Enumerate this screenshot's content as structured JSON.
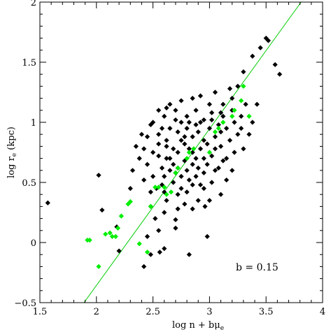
{
  "chart_data": {
    "type": "scatter",
    "xlabel": "log n + bμe",
    "xlabel_parts": {
      "main": "log n + bμ",
      "sub": "e"
    },
    "ylabel": "log re (kpc)",
    "ylabel_parts": {
      "pre": "log r",
      "sub": "e",
      "post": " (kpc)"
    },
    "xlim": [
      1.5,
      4
    ],
    "ylim": [
      -0.5,
      2
    ],
    "x_major_ticks": [
      1.5,
      2,
      2.5,
      3,
      3.5,
      4
    ],
    "x_tick_labels": [
      "1.5",
      "2",
      "2.5",
      "3",
      "3.5",
      "4"
    ],
    "y_major_ticks": [
      -0.5,
      0,
      0.5,
      1,
      1.5,
      2
    ],
    "y_tick_labels": [
      "−0.5",
      "0",
      "0.5",
      "1",
      "1.5",
      "2"
    ],
    "grid": false,
    "annotation": "b = 0.15",
    "fit_line": {
      "x": [
        1.89,
        3.81
      ],
      "y": [
        -0.5,
        2.0
      ],
      "color": "#00cc00"
    },
    "series": [
      {
        "color": "#000000",
        "marker": "diamond",
        "points": [
          [
            1.57,
            0.33
          ],
          [
            2.02,
            0.56
          ],
          [
            2.05,
            0.27
          ],
          [
            2.18,
            0.13
          ],
          [
            2.2,
            -0.07
          ],
          [
            2.42,
            -0.2
          ],
          [
            2.45,
            0.05
          ],
          [
            2.48,
            -0.1
          ],
          [
            2.56,
            -0.08
          ],
          [
            2.6,
            -0.05
          ],
          [
            2.82,
            -0.1
          ],
          [
            2.55,
            0.1
          ],
          [
            2.7,
            0.12
          ],
          [
            2.7,
            0.19
          ],
          [
            2.98,
            0.05
          ],
          [
            2.52,
            0.2
          ],
          [
            2.6,
            0.25
          ],
          [
            2.62,
            0.35
          ],
          [
            2.72,
            0.28
          ],
          [
            2.78,
            0.32
          ],
          [
            2.85,
            0.28
          ],
          [
            2.9,
            0.35
          ],
          [
            2.96,
            0.3
          ],
          [
            2.72,
            0.4
          ],
          [
            2.8,
            0.42
          ],
          [
            2.48,
            0.42
          ],
          [
            2.53,
            0.45
          ],
          [
            2.58,
            0.48
          ],
          [
            2.5,
            0.55
          ],
          [
            2.6,
            0.55
          ],
          [
            2.68,
            0.5
          ],
          [
            2.75,
            0.55
          ],
          [
            2.85,
            0.48
          ],
          [
            2.95,
            0.45
          ],
          [
            3.02,
            0.5
          ],
          [
            3.1,
            0.4
          ],
          [
            2.38,
            0.7
          ],
          [
            2.45,
            0.65
          ],
          [
            2.55,
            0.72
          ],
          [
            2.62,
            0.7
          ],
          [
            2.68,
            0.65
          ],
          [
            2.72,
            0.75
          ],
          [
            2.78,
            0.68
          ],
          [
            2.82,
            0.78
          ],
          [
            2.88,
            0.7
          ],
          [
            2.92,
            0.78
          ],
          [
            2.98,
            0.65
          ],
          [
            3.02,
            0.72
          ],
          [
            3.08,
            0.62
          ],
          [
            3.15,
            0.7
          ],
          [
            3.2,
            0.6
          ],
          [
            2.45,
            0.88
          ],
          [
            2.55,
            0.9
          ],
          [
            2.62,
            0.85
          ],
          [
            2.65,
            0.95
          ],
          [
            2.72,
            0.92
          ],
          [
            2.75,
            0.85
          ],
          [
            2.8,
            0.95
          ],
          [
            2.85,
            0.88
          ],
          [
            2.9,
            0.92
          ],
          [
            2.95,
            0.85
          ],
          [
            3.0,
            0.95
          ],
          [
            3.05,
            0.88
          ],
          [
            3.1,
            0.92
          ],
          [
            3.18,
            0.85
          ],
          [
            3.25,
            0.9
          ],
          [
            3.3,
            0.78
          ],
          [
            2.5,
            1.0
          ],
          [
            2.6,
            1.05
          ],
          [
            2.7,
            1.02
          ],
          [
            2.8,
            1.05
          ],
          [
            2.88,
            1.1
          ],
          [
            2.95,
            1.02
          ],
          [
            3.02,
            1.08
          ],
          [
            3.12,
            1.05
          ],
          [
            3.2,
            1.1
          ],
          [
            3.28,
            0.95
          ],
          [
            3.32,
            1.15
          ],
          [
            2.92,
            1.22
          ],
          [
            3.05,
            1.25
          ],
          [
            3.18,
            1.28
          ],
          [
            3.25,
            1.3
          ],
          [
            3.42,
            1.15
          ],
          [
            3.3,
            1.42
          ],
          [
            3.38,
            1.55
          ],
          [
            3.45,
            1.62
          ],
          [
            3.5,
            1.7
          ],
          [
            3.52,
            1.68
          ],
          [
            3.58,
            1.48
          ],
          [
            3.62,
            1.4
          ],
          [
            2.65,
            1.15
          ],
          [
            2.75,
            1.18
          ],
          [
            2.85,
            1.2
          ],
          [
            2.35,
            0.8
          ],
          [
            2.3,
            0.45
          ],
          [
            2.32,
            0.6
          ],
          [
            2.42,
            0.52
          ],
          [
            2.48,
            0.3
          ],
          [
            2.65,
            0.6
          ],
          [
            2.75,
            0.45
          ],
          [
            2.88,
            0.55
          ],
          [
            3.0,
            0.35
          ],
          [
            3.15,
            0.52
          ],
          [
            3.22,
            0.75
          ],
          [
            3.35,
            0.9
          ],
          [
            3.38,
            1.0
          ],
          [
            3.1,
            0.8
          ],
          [
            2.9,
            0.62
          ],
          [
            2.58,
            0.62
          ],
          [
            2.68,
            0.78
          ],
          [
            2.78,
            0.82
          ],
          [
            2.85,
            0.75
          ],
          [
            2.95,
            0.7
          ],
          [
            3.05,
            0.78
          ],
          [
            2.8,
            0.6
          ],
          [
            2.72,
            0.62
          ],
          [
            2.62,
            0.8
          ],
          [
            2.55,
            0.82
          ],
          [
            2.5,
            0.75
          ],
          [
            2.42,
            0.78
          ],
          [
            2.98,
            0.82
          ],
          [
            3.08,
            0.98
          ],
          [
            3.15,
            0.95
          ],
          [
            2.82,
            1.0
          ],
          [
            2.7,
            1.1
          ],
          [
            2.58,
            0.95
          ],
          [
            2.92,
            1.0
          ],
          [
            3.02,
            1.02
          ],
          [
            3.12,
            1.15
          ],
          [
            3.22,
            1.0
          ],
          [
            2.78,
            0.88
          ],
          [
            2.65,
            0.7
          ],
          [
            2.85,
            0.65
          ],
          [
            2.95,
            0.58
          ],
          [
            3.05,
            0.6
          ],
          [
            3.12,
            0.68
          ],
          [
            2.7,
            0.58
          ],
          [
            2.6,
            0.42
          ],
          [
            2.82,
            0.52
          ],
          [
            2.92,
            0.48
          ],
          [
            2.4,
            0.9
          ],
          [
            2.48,
            0.98
          ],
          [
            2.55,
            1.1
          ],
          [
            2.62,
            1.12
          ],
          [
            2.75,
            1.0
          ],
          [
            2.88,
            0.98
          ],
          [
            3.0,
            1.15
          ],
          [
            3.1,
            1.08
          ],
          [
            3.2,
            1.2
          ],
          [
            3.28,
            1.05
          ]
        ]
      },
      {
        "color": "#00ee00",
        "marker": "diamond",
        "points": [
          [
            1.92,
            0.02
          ],
          [
            1.94,
            0.02
          ],
          [
            2.02,
            -0.2
          ],
          [
            2.08,
            0.07
          ],
          [
            2.12,
            0.08
          ],
          [
            2.14,
            0.05
          ],
          [
            2.17,
            0.05
          ],
          [
            2.19,
            0.12
          ],
          [
            2.22,
            0.22
          ],
          [
            2.28,
            0.32
          ],
          [
            2.3,
            0.34
          ],
          [
            2.38,
            -0.01
          ],
          [
            2.45,
            -0.08
          ],
          [
            2.48,
            0.3
          ],
          [
            2.52,
            0.46
          ],
          [
            2.55,
            0.46
          ],
          [
            2.6,
            0.46
          ],
          [
            2.62,
            0.4
          ],
          [
            2.66,
            0.42
          ],
          [
            2.7,
            0.58
          ],
          [
            2.72,
            0.62
          ],
          [
            2.8,
            0.7
          ],
          [
            2.82,
            0.75
          ],
          [
            2.86,
            0.78
          ],
          [
            3.0,
            0.75
          ],
          [
            3.05,
            0.92
          ],
          [
            3.08,
            0.95
          ],
          [
            3.12,
            1.0
          ],
          [
            3.2,
            1.05
          ],
          [
            3.22,
            1.1
          ],
          [
            3.28,
            1.18
          ],
          [
            3.3,
            1.3
          ],
          [
            3.35,
            1.05
          ]
        ]
      }
    ]
  }
}
